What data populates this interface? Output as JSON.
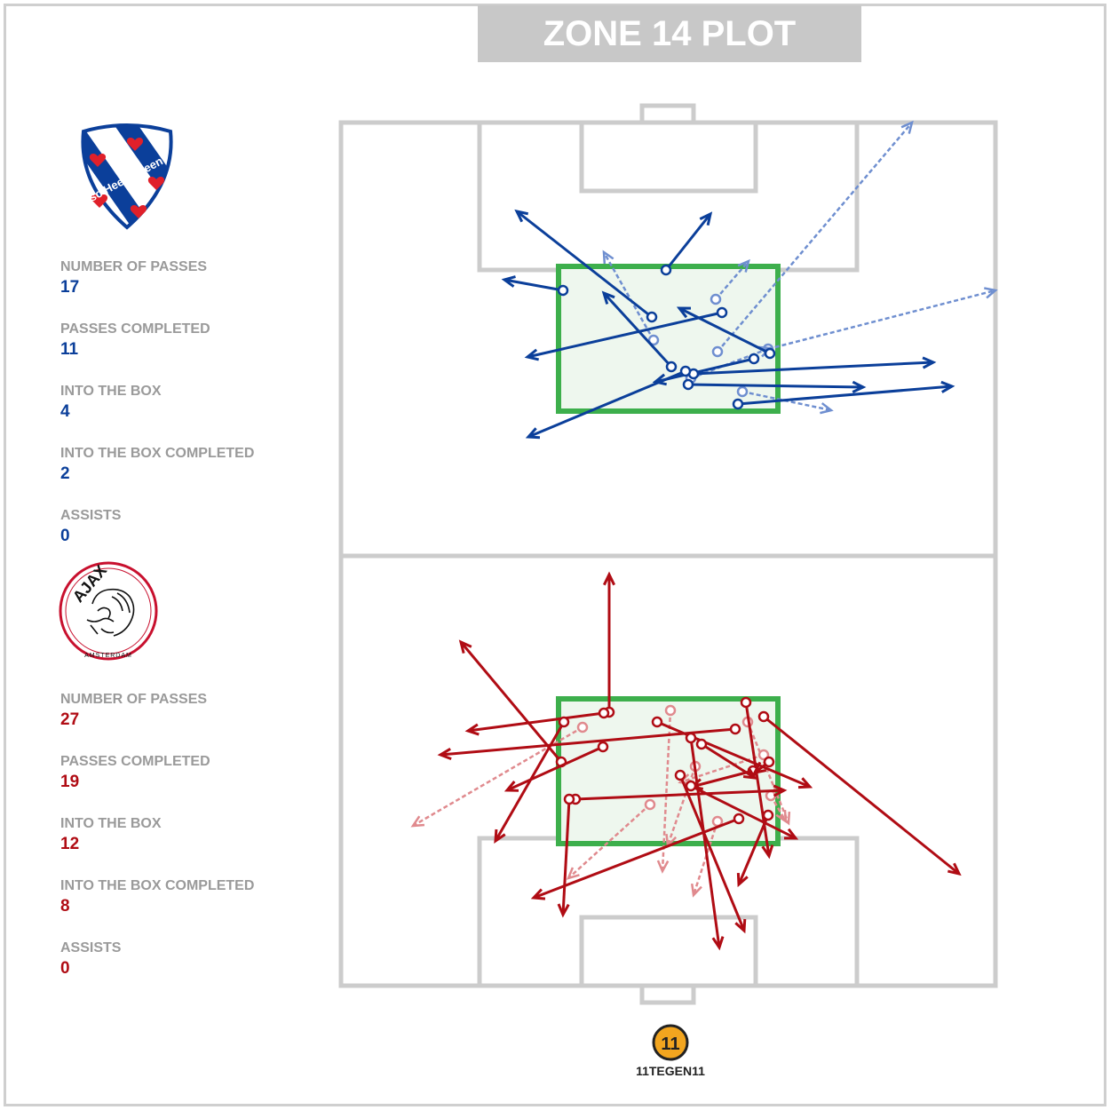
{
  "title": "ZONE 14 PLOT",
  "home": {
    "crest_text": "sc Heerenveen",
    "color": "#0b3f9a",
    "color_light": "#6f8fd0",
    "stats": [
      {
        "label": "NUMBER OF PASSES",
        "value": "17"
      },
      {
        "label": "PASSES COMPLETED",
        "value": "11"
      },
      {
        "label": "INTO THE BOX",
        "value": "4"
      },
      {
        "label": "INTO THE BOX COMPLETED",
        "value": "2"
      },
      {
        "label": "ASSISTS",
        "value": "0"
      }
    ]
  },
  "away": {
    "crest_text": "AJAX",
    "crest_subtext": "AMSTERDAM",
    "color": "#b00c14",
    "color_light": "#e08a8e",
    "stats": [
      {
        "label": "NUMBER OF PASSES",
        "value": "27"
      },
      {
        "label": "PASSES COMPLETED",
        "value": "19"
      },
      {
        "label": "INTO THE BOX",
        "value": "12"
      },
      {
        "label": "INTO THE BOX COMPLETED",
        "value": "8"
      },
      {
        "label": "ASSISTS",
        "value": "0"
      }
    ]
  },
  "brand": {
    "logo_text": "11",
    "name": "11TEGEN11"
  }
}
